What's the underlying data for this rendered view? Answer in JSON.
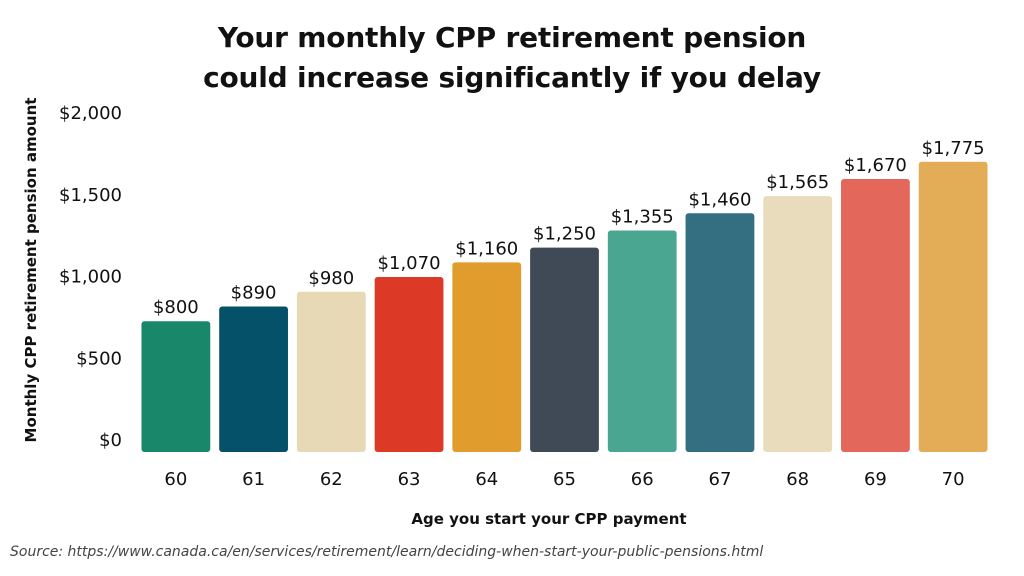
{
  "chart_data": {
    "type": "bar",
    "title_line1": "Your monthly CPP retirement pension",
    "title_line2": "could increase significantly if you delay",
    "xlabel": "Age you start your CPP payment",
    "ylabel": "Monthly CPP retirement pension amount",
    "categories": [
      "60",
      "61",
      "62",
      "63",
      "64",
      "65",
      "66",
      "67",
      "68",
      "69",
      "70"
    ],
    "values": [
      800,
      890,
      980,
      1070,
      1160,
      1250,
      1355,
      1460,
      1565,
      1670,
      1775
    ],
    "value_labels": [
      "$800",
      "$890",
      "$980",
      "$1,070",
      "$1,160",
      "$1,250",
      "$1,355",
      "$1,460",
      "$1,565",
      "$1,670",
      "$1,775"
    ],
    "colors": [
      "#19876a",
      "#06516a",
      "#e8d9b6",
      "#dc3a26",
      "#e09d2e",
      "#3f4a56",
      "#4aa690",
      "#336f81",
      "#e8dcbd",
      "#e4675b",
      "#e3ad57"
    ],
    "yticks": [
      0,
      500,
      1000,
      1500,
      2000
    ],
    "ytick_labels": [
      "$0",
      "$500",
      "$1,000",
      "$1,500",
      "$2,000"
    ],
    "ylim": [
      0,
      2000
    ],
    "grid": false,
    "legend": "none"
  },
  "source": "Source: https://www.canada.ca/en/services/retirement/learn/deciding-when-start-your-public-pensions.html"
}
